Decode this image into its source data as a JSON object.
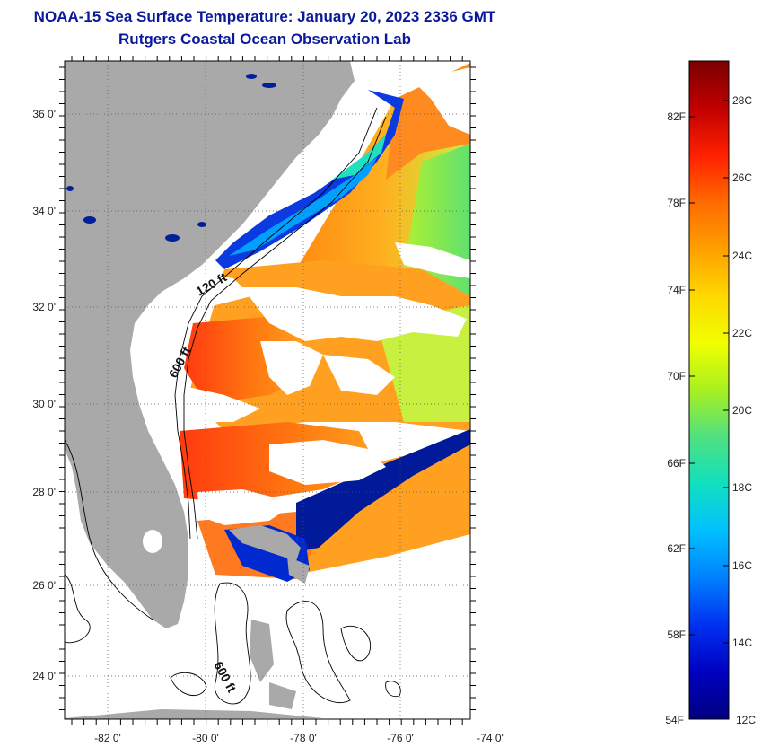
{
  "header": {
    "title": "NOAA-15 Sea Surface Temperature:  January 20, 2023 2336 GMT",
    "subtitle": "Rutgers Coastal Ocean Observation Lab"
  },
  "map": {
    "lat_labels": [
      "36 0'",
      "34 0'",
      "32 0'",
      "30 0'",
      "28 0'",
      "26 0'",
      "24 0'"
    ],
    "lon_labels": [
      "-82 0'",
      "-80 0'",
      "-78 0'",
      "-76 0'",
      "-74 0'"
    ],
    "isobath_labels": [
      "120 ft",
      "600 ft",
      "600 ft"
    ]
  },
  "colorbar": {
    "fahrenheit_labels": [
      "82F",
      "78F",
      "74F",
      "70F",
      "66F",
      "62F",
      "58F",
      "54F"
    ],
    "celsius_labels": [
      "28C",
      "26C",
      "24C",
      "22C",
      "20C",
      "18C",
      "16C",
      "14C",
      "12C"
    ],
    "colors": [
      "#7a0000",
      "#c00000",
      "#ff2000",
      "#ff6a00",
      "#ffa000",
      "#ffd800",
      "#f0ff00",
      "#a8f020",
      "#50e080",
      "#10e0c0",
      "#00c0ff",
      "#0080ff",
      "#0030f0",
      "#0000c0",
      "#000080"
    ]
  },
  "palette": {
    "land": "#a9a9a9",
    "cloud": "#ffffff",
    "frame": "#000000"
  }
}
